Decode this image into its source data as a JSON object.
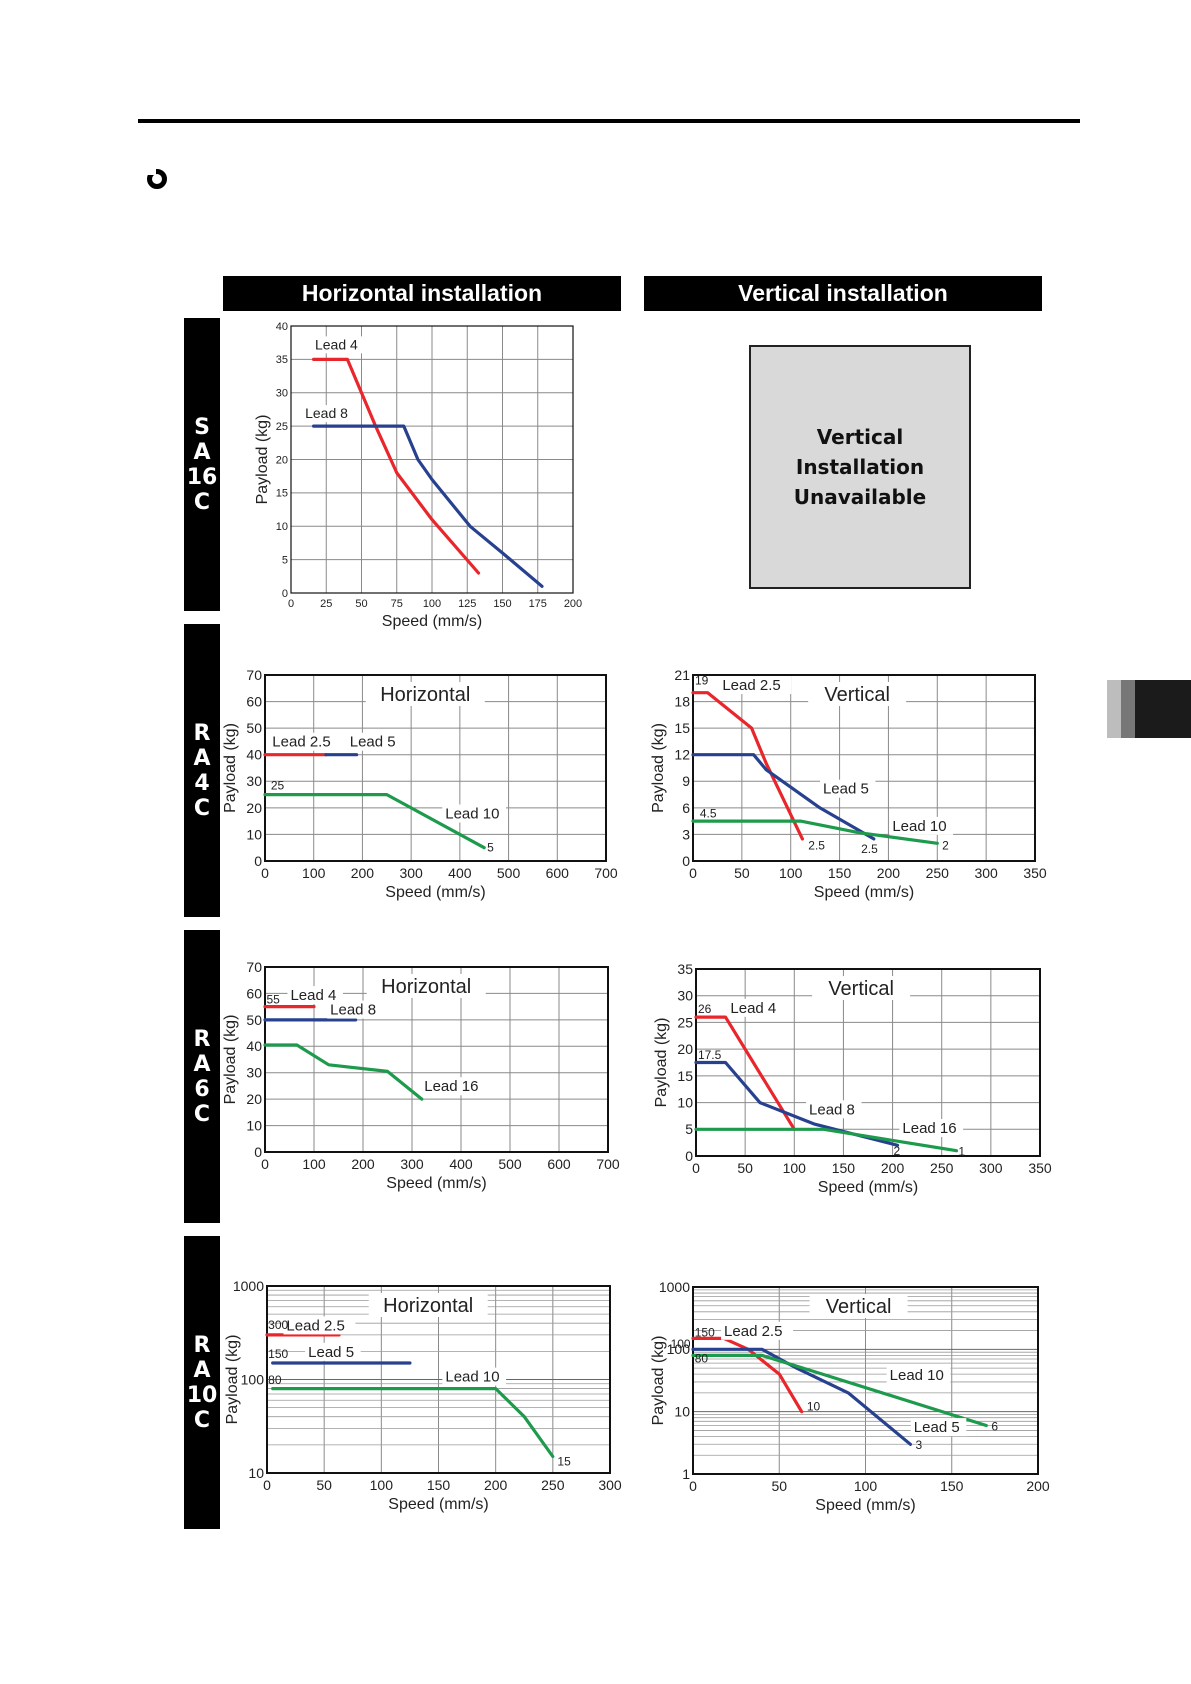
{
  "column_headers": {
    "horizontal": "Horizontal installation",
    "vertical": "Vertical installation"
  },
  "row_labels": [
    {
      "lines": [
        "S",
        "A",
        "16",
        "C"
      ]
    },
    {
      "lines": [
        "R",
        "A",
        "4",
        "C"
      ]
    },
    {
      "lines": [
        "R",
        "A",
        "6",
        "C"
      ]
    },
    {
      "lines": [
        "R",
        "A",
        "10",
        "C"
      ]
    }
  ],
  "unavailable_text": "Vertical Installation\nUnavailable",
  "chart_data": [
    {
      "type": "line",
      "title": "",
      "xlabel": "Speed (mm/s)",
      "ylabel": "Payload (kg)",
      "xlim": [
        0,
        200
      ],
      "ylim": [
        0,
        40
      ],
      "xstep": 25,
      "ystep": 5,
      "log": false,
      "grid": true,
      "series": [
        {
          "name": "Lead 4",
          "color": "#e8262b",
          "points": [
            [
              16,
              35
            ],
            [
              40,
              35
            ],
            [
              50,
              30
            ],
            [
              60,
              25
            ],
            [
              75,
              18
            ],
            [
              100,
              11
            ],
            [
              133,
              3
            ]
          ]
        },
        {
          "name": "Lead 8",
          "color": "#27418f",
          "points": [
            [
              16,
              25
            ],
            [
              80,
              25
            ],
            [
              90,
              20
            ],
            [
              100,
              17
            ],
            [
              127,
              10
            ],
            [
              150,
              6
            ],
            [
              178,
              1
            ]
          ]
        }
      ],
      "series_labels": [
        {
          "text": "Lead 4",
          "x": 17,
          "y": 36.5
        },
        {
          "text": "Lead 8",
          "x": 10,
          "y": 26.2
        }
      ],
      "point_labels": []
    },
    {
      "type": "line",
      "title": "Horizontal",
      "xlabel": "Speed (mm/s)",
      "ylabel": "Payload (kg)",
      "xlim": [
        0,
        700
      ],
      "ylim": [
        0,
        70
      ],
      "xstep": 100,
      "ystep": 10,
      "log": false,
      "grid": true,
      "series": [
        {
          "name": "Lead 2.5",
          "color": "#e8262b",
          "points": [
            [
              0,
              40
            ],
            [
              125,
              40
            ]
          ]
        },
        {
          "name": "Lead 5",
          "color": "#27418f",
          "points": [
            [
              125,
              40
            ],
            [
              188,
              40
            ]
          ]
        },
        {
          "name": "Lead 10",
          "color": "#1d9a4c",
          "points": [
            [
              0,
              25
            ],
            [
              250,
              25
            ],
            [
              450,
              5
            ]
          ]
        }
      ],
      "series_labels": [
        {
          "text": "Lead 2.5",
          "x": 15,
          "y": 43
        },
        {
          "text": "Lead 5",
          "x": 174,
          "y": 43
        },
        {
          "text": "Lead 10",
          "x": 370,
          "y": 16
        }
      ],
      "point_labels": [
        {
          "text": "25",
          "x": 12,
          "y": 27
        },
        {
          "text": "5",
          "x": 456,
          "y": 3.5
        }
      ]
    },
    {
      "type": "line",
      "title": "Vertical",
      "xlabel": "Speed (mm/s)",
      "ylabel": "Payload (kg)",
      "xlim": [
        0,
        350
      ],
      "ylim": [
        0,
        21
      ],
      "xstep": 50,
      "ystep": 3,
      "log": false,
      "grid": true,
      "series": [
        {
          "name": "Lead 2.5",
          "color": "#e8262b",
          "points": [
            [
              0,
              19
            ],
            [
              15,
              19
            ],
            [
              60,
              15
            ],
            [
              75,
              11
            ],
            [
              112,
              2.5
            ]
          ]
        },
        {
          "name": "Lead 5",
          "color": "#27418f",
          "points": [
            [
              0,
              12
            ],
            [
              62,
              12
            ],
            [
              75,
              10.3
            ],
            [
              130,
              6
            ],
            [
              185,
              2.5
            ]
          ]
        },
        {
          "name": "Lead 10",
          "color": "#1d9a4c",
          "points": [
            [
              0,
              4.5
            ],
            [
              110,
              4.5
            ],
            [
              170,
              3.2
            ],
            [
              250,
              2
            ]
          ]
        }
      ],
      "series_labels": [
        {
          "text": "Lead 2.5",
          "x": 30,
          "y": 19.3
        },
        {
          "text": "Lead 5",
          "x": 133,
          "y": 7.6
        },
        {
          "text": "Lead 10",
          "x": 204,
          "y": 3.4
        }
      ],
      "point_labels": [
        {
          "text": "19",
          "x": 2,
          "y": 19.9
        },
        {
          "text": "4.5",
          "x": 7,
          "y": 4.9
        },
        {
          "text": "2.5",
          "x": 118,
          "y": 1.3
        },
        {
          "text": "2.5",
          "x": 172,
          "y": 0.9
        },
        {
          "text": "2",
          "x": 255,
          "y": 1.3
        }
      ]
    },
    {
      "type": "line",
      "title": "Horizontal",
      "xlabel": "Speed (mm/s)",
      "ylabel": "Payload (kg)",
      "xlim": [
        0,
        700
      ],
      "ylim": [
        0,
        70
      ],
      "xstep": 100,
      "ystep": 10,
      "log": false,
      "grid": true,
      "series": [
        {
          "name": "Lead 4",
          "color": "#e8262b",
          "points": [
            [
              0,
              55
            ],
            [
              100,
              55
            ]
          ]
        },
        {
          "name": "Lead 8",
          "color": "#27418f",
          "points": [
            [
              0,
              50
            ],
            [
              185,
              50
            ]
          ]
        },
        {
          "name": "Lead 16",
          "color": "#1d9a4c",
          "points": [
            [
              0,
              40.5
            ],
            [
              65,
              40.5
            ],
            [
              130,
              33
            ],
            [
              250,
              30.5
            ],
            [
              320,
              20
            ]
          ]
        }
      ],
      "series_labels": [
        {
          "text": "Lead 4",
          "x": 52,
          "y": 57.5
        },
        {
          "text": "Lead 8",
          "x": 133,
          "y": 52
        },
        {
          "text": "Lead 16",
          "x": 325,
          "y": 23
        }
      ],
      "point_labels": [
        {
          "text": "55",
          "x": 3,
          "y": 56.2
        }
      ]
    },
    {
      "type": "line",
      "title": "Vertical",
      "xlabel": "Speed (mm/s)",
      "ylabel": "Payload (kg)",
      "xlim": [
        0,
        350
      ],
      "ylim": [
        0,
        35
      ],
      "xstep": 50,
      "ystep": 5,
      "log": false,
      "grid": true,
      "series": [
        {
          "name": "Lead 4",
          "color": "#e8262b",
          "points": [
            [
              0,
              26
            ],
            [
              30,
              26
            ],
            [
              100,
              5
            ]
          ]
        },
        {
          "name": "Lead 8",
          "color": "#27418f",
          "points": [
            [
              0,
              17.5
            ],
            [
              30,
              17.5
            ],
            [
              65,
              10
            ],
            [
              120,
              6
            ],
            [
              205,
              2
            ]
          ]
        },
        {
          "name": "Lead 16",
          "color": "#1d9a4c",
          "points": [
            [
              0,
              5
            ],
            [
              130,
              5
            ],
            [
              265,
              1
            ]
          ]
        }
      ],
      "series_labels": [
        {
          "text": "Lead 4",
          "x": 35,
          "y": 26.8
        },
        {
          "text": "Lead 8",
          "x": 115,
          "y": 7.8
        },
        {
          "text": "Lead 16",
          "x": 210,
          "y": 4.3
        }
      ],
      "point_labels": [
        {
          "text": "26",
          "x": 2,
          "y": 26.8
        },
        {
          "text": "17.5",
          "x": 2,
          "y": 18.2
        },
        {
          "text": "2",
          "x": 201,
          "y": 0.2
        },
        {
          "text": "1",
          "x": 267,
          "y": 0.1
        }
      ]
    },
    {
      "type": "line",
      "title": "Horizontal",
      "xlabel": "Speed (mm/s)",
      "ylabel": "Payload (kg)",
      "xlim": [
        0,
        300
      ],
      "ylim": [
        10,
        1000
      ],
      "xstep": 50,
      "log": true,
      "grid": true,
      "yticks": [
        10,
        100,
        1000
      ],
      "series": [
        {
          "name": "Lead 2.5",
          "color": "#e8262b",
          "points": [
            [
              0,
              300
            ],
            [
              63,
              300
            ]
          ]
        },
        {
          "name": "Lead 5",
          "color": "#27418f",
          "points": [
            [
              5,
              150
            ],
            [
              125,
              150
            ]
          ]
        },
        {
          "name": "Lead 10",
          "color": "#1d9a4c",
          "points": [
            [
              5,
              80
            ],
            [
              200,
              80
            ],
            [
              225,
              40
            ],
            [
              250,
              15
            ]
          ]
        }
      ],
      "series_labels": [
        {
          "text": "Lead 2.5",
          "x": 17,
          "y": 335
        },
        {
          "text": "Lead 5",
          "x": 36,
          "y": 175
        },
        {
          "text": "Lead 10",
          "x": 156,
          "y": 95
        }
      ],
      "point_labels": [
        {
          "text": "300",
          "x": 1,
          "y": 345
        },
        {
          "text": "150",
          "x": 1,
          "y": 170
        },
        {
          "text": "80",
          "x": 1,
          "y": 90
        },
        {
          "text": "15",
          "x": 254,
          "y": 12
        }
      ]
    },
    {
      "type": "line",
      "title": "Vertical",
      "xlabel": "Speed (mm/s)",
      "ylabel": "Payload (kg)",
      "xlim": [
        0,
        200
      ],
      "ylim": [
        1,
        1000
      ],
      "xstep": 50,
      "log": true,
      "grid": true,
      "yticks": [
        1,
        10,
        100,
        1000
      ],
      "series": [
        {
          "name": "Lead 2.5",
          "color": "#e8262b",
          "points": [
            [
              0,
              150
            ],
            [
              18,
              150
            ],
            [
              32,
              100
            ],
            [
              50,
              40
            ],
            [
              63,
              10
            ]
          ]
        },
        {
          "name": "Lead 5",
          "color": "#27418f",
          "points": [
            [
              0,
              100
            ],
            [
              40,
              100
            ],
            [
              60,
              50
            ],
            [
              90,
              20
            ],
            [
              126,
              3
            ]
          ]
        },
        {
          "name": "Lead 10",
          "color": "#1d9a4c",
          "points": [
            [
              0,
              80
            ],
            [
              40,
              80
            ],
            [
              75,
              40
            ],
            [
              170,
              6
            ]
          ]
        }
      ],
      "series_labels": [
        {
          "text": "Lead 2.5",
          "x": 18,
          "y": 165
        },
        {
          "text": "Lead 10",
          "x": 114,
          "y": 32
        },
        {
          "text": "Lead 5",
          "x": 128,
          "y": 4.7
        }
      ],
      "point_labels": [
        {
          "text": "150",
          "x": 1,
          "y": 160
        },
        {
          "text": "100",
          "x": -13,
          "y": 105
        },
        {
          "text": "80",
          "x": 1,
          "y": 62
        },
        {
          "text": "10",
          "x": 66,
          "y": 10.5
        },
        {
          "text": "6",
          "x": 173,
          "y": 5
        },
        {
          "text": "3",
          "x": 129,
          "y": 2.5
        }
      ]
    }
  ]
}
